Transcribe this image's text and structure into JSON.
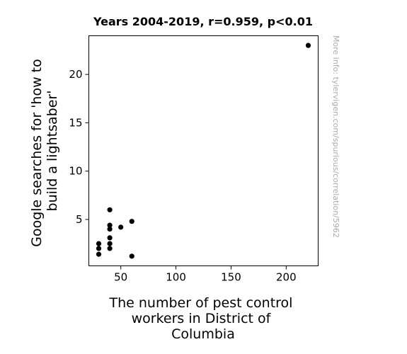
{
  "chart_data": {
    "type": "scatter",
    "title": "Years 2004-2019, r=0.959, p<0.01",
    "xlabel_lines": [
      "The number of pest control",
      "workers in District of",
      "Columbia"
    ],
    "ylabel_lines": [
      "Google searches for 'how to",
      "build a lightsaber'"
    ],
    "side_note": "More info: tylervigen.com/spurious/correlation/5962",
    "xlim": [
      21,
      229
    ],
    "ylim": [
      0.2,
      24.0
    ],
    "xticks": [
      50,
      100,
      150,
      200
    ],
    "yticks": [
      5,
      10,
      15,
      20
    ],
    "grid": false,
    "point_color": "#000000",
    "points": [
      {
        "x": 30,
        "y": 2.5
      },
      {
        "x": 30,
        "y": 2.0
      },
      {
        "x": 30,
        "y": 1.4
      },
      {
        "x": 40,
        "y": 6.0
      },
      {
        "x": 40,
        "y": 4.4
      },
      {
        "x": 40,
        "y": 4.0
      },
      {
        "x": 40,
        "y": 3.1
      },
      {
        "x": 40,
        "y": 2.5
      },
      {
        "x": 40,
        "y": 2.0
      },
      {
        "x": 50,
        "y": 4.2
      },
      {
        "x": 60,
        "y": 4.8
      },
      {
        "x": 60,
        "y": 1.2
      },
      {
        "x": 220,
        "y": 23.0
      }
    ]
  }
}
